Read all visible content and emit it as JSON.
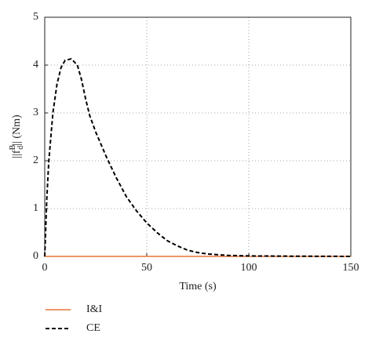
{
  "chart_data": {
    "type": "line",
    "xlabel": "Time (s)",
    "ylabel": {
      "base": "||f",
      "sup": "B",
      "sub": "d",
      "tail": "|| (Nm)"
    },
    "xlim": [
      0,
      150
    ],
    "xticks": [
      0,
      50,
      100,
      150
    ],
    "ylim": [
      0,
      5
    ],
    "yticks": [
      0,
      1,
      2,
      3,
      4,
      5
    ],
    "grid": true,
    "series": [
      {
        "name": "I&I",
        "color": "#e8743b",
        "dash": false,
        "x": [
          0,
          150
        ],
        "values": [
          0,
          0
        ]
      },
      {
        "name": "CE",
        "color": "#000000",
        "dash": true,
        "x": [
          0,
          1,
          2,
          4,
          6,
          8,
          10,
          13,
          16,
          18,
          20,
          22,
          25,
          30,
          35,
          40,
          45,
          50,
          55,
          60,
          65,
          70,
          75,
          80,
          90,
          100,
          120,
          150
        ],
        "values": [
          0,
          1.2,
          2.0,
          3.0,
          3.6,
          3.95,
          4.1,
          4.13,
          4.0,
          3.7,
          3.3,
          2.95,
          2.6,
          2.1,
          1.65,
          1.25,
          0.95,
          0.7,
          0.5,
          0.33,
          0.22,
          0.13,
          0.08,
          0.05,
          0.02,
          0.01,
          0.005,
          0
        ]
      }
    ]
  }
}
